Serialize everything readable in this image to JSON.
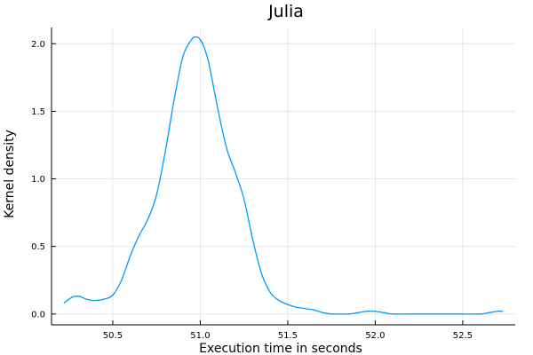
{
  "chart_data": {
    "type": "line",
    "title": "Julia",
    "xlabel": "Execution time in seconds",
    "ylabel": "Kernel density",
    "xlim": [
      50.15,
      52.8
    ],
    "ylim": [
      -0.08,
      2.12
    ],
    "xticks": [
      50.5,
      51.0,
      51.5,
      52.0,
      52.5
    ],
    "xtick_labels": [
      "50.5",
      "51.0",
      "51.5",
      "52.0",
      "52.5"
    ],
    "yticks": [
      0.0,
      0.5,
      1.0,
      1.5,
      2.0
    ],
    "ytick_labels": [
      "0.0",
      "0.5",
      "1.0",
      "1.5",
      "2.0"
    ],
    "grid": true,
    "legend": "none",
    "series": [
      {
        "color": "#009af9",
        "x": [
          50.22,
          50.25,
          50.28,
          50.31,
          50.35,
          50.4,
          50.45,
          50.5,
          50.55,
          50.6,
          50.65,
          50.7,
          50.75,
          50.8,
          50.85,
          50.9,
          50.95,
          50.98,
          51.0,
          51.02,
          51.05,
          51.1,
          51.15,
          51.2,
          51.25,
          51.3,
          51.35,
          51.4,
          51.45,
          51.5,
          51.55,
          51.6,
          51.65,
          51.7,
          51.75,
          51.8,
          51.85,
          51.9,
          51.95,
          51.98,
          52.0,
          52.05,
          52.1,
          52.2,
          52.3,
          52.4,
          52.5,
          52.6,
          52.65,
          52.7,
          52.73
        ],
        "y": [
          0.08,
          0.11,
          0.13,
          0.13,
          0.11,
          0.1,
          0.11,
          0.14,
          0.25,
          0.43,
          0.58,
          0.7,
          0.88,
          1.2,
          1.58,
          1.9,
          2.03,
          2.05,
          2.03,
          1.98,
          1.85,
          1.52,
          1.23,
          1.05,
          0.85,
          0.55,
          0.3,
          0.16,
          0.1,
          0.07,
          0.05,
          0.04,
          0.03,
          0.01,
          0.0,
          0.0,
          0.0,
          0.01,
          0.02,
          0.02,
          0.02,
          0.01,
          0.0,
          0.0,
          0.0,
          0.0,
          0.0,
          0.0,
          0.01,
          0.02,
          0.02
        ]
      }
    ]
  }
}
